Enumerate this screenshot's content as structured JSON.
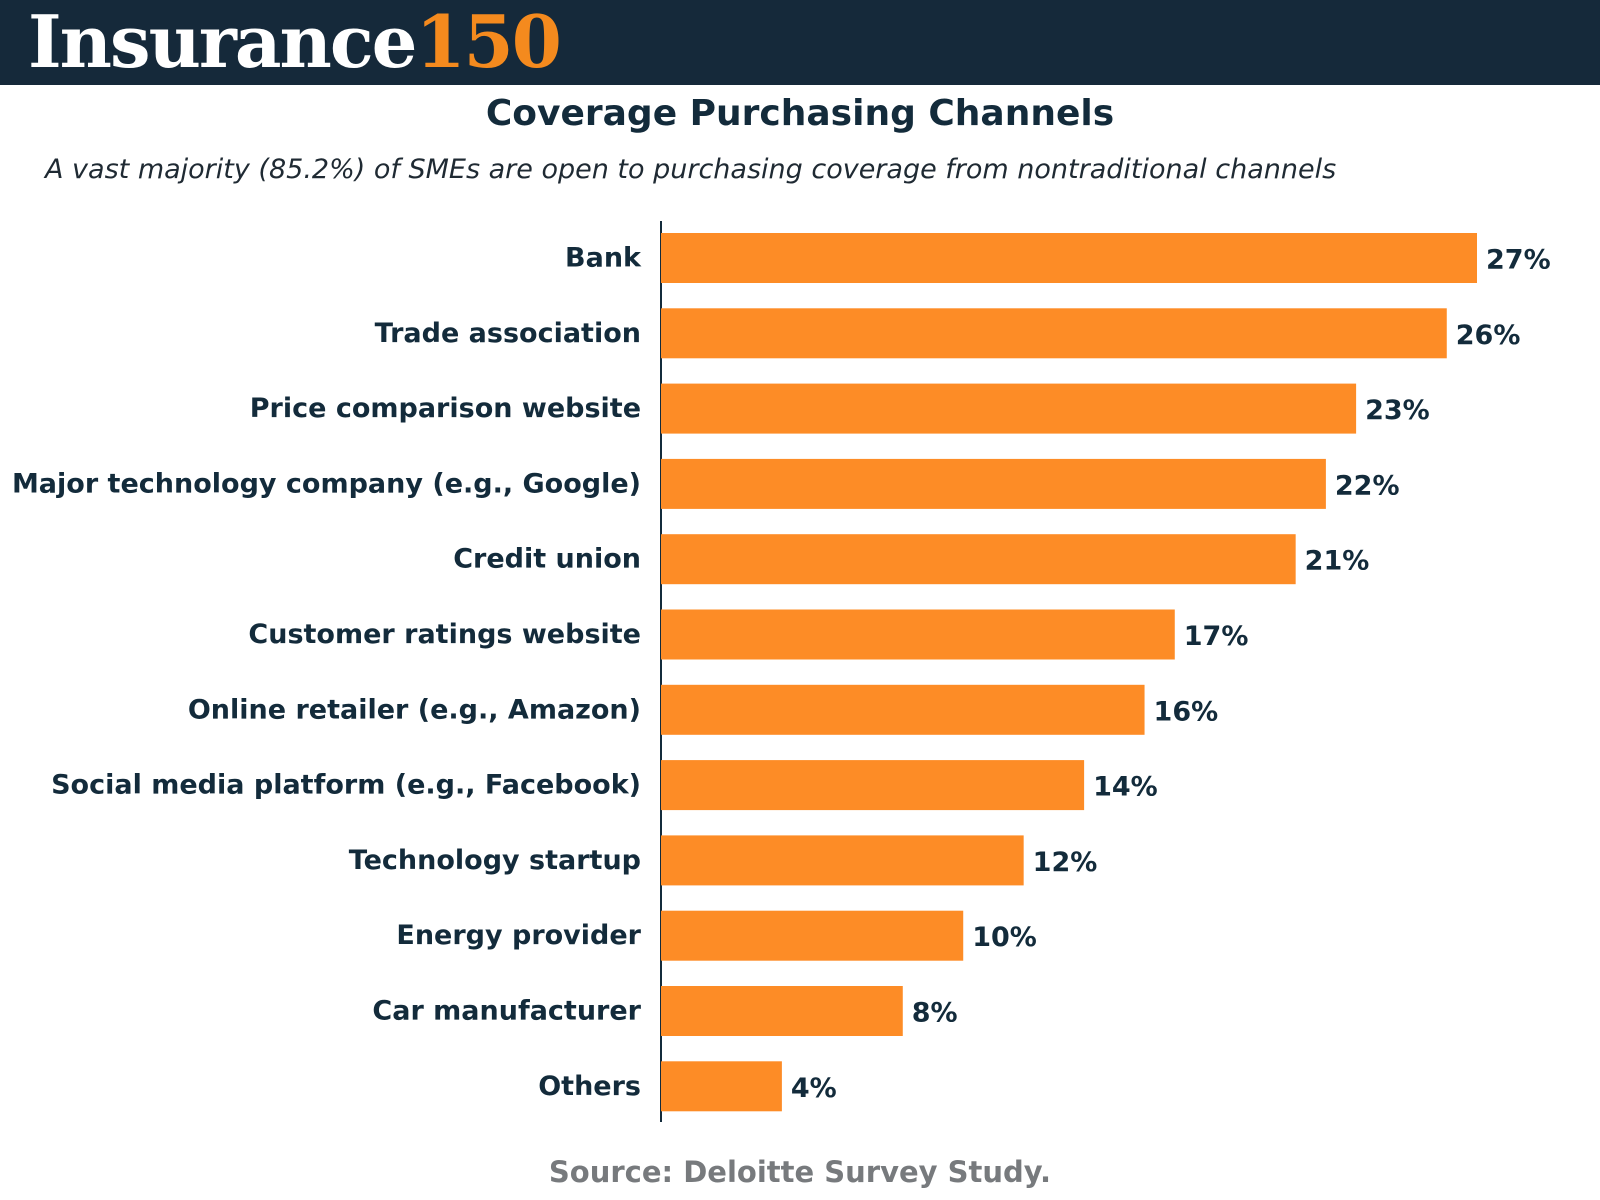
{
  "header": {
    "brand_word": "Insurance",
    "brand_number": "150"
  },
  "colors": {
    "header_bg": "#15293a",
    "brand_accent": "#f48a1e",
    "bar": "#fd8c26",
    "text": "#132b3b",
    "source_text": "#777a7d"
  },
  "chart_data": {
    "type": "bar",
    "orientation": "horizontal",
    "title": "Coverage Purchasing Channels",
    "subtitle": "A vast majority (85.2%) of SMEs are open to purchasing coverage from nontraditional channels",
    "categories": [
      "Bank",
      "Trade association",
      "Price comparison website",
      "Major technology company (e.g., Google)",
      "Credit union",
      "Customer ratings website",
      "Online retailer (e.g., Amazon)",
      "Social media platform (e.g., Facebook)",
      "Technology startup",
      "Energy provider",
      "Car manufacturer",
      "Others"
    ],
    "values": [
      27,
      26,
      23,
      22,
      21,
      17,
      16,
      14,
      12,
      10,
      8,
      4
    ],
    "value_labels": [
      "27%",
      "26%",
      "23%",
      "22%",
      "21%",
      "17%",
      "16%",
      "14%",
      "12%",
      "10%",
      "8%",
      "4%"
    ],
    "unit": "%",
    "xlim": [
      0,
      27
    ],
    "grid": false,
    "legend": "none"
  },
  "source": "Source: Deloitte Survey Study."
}
